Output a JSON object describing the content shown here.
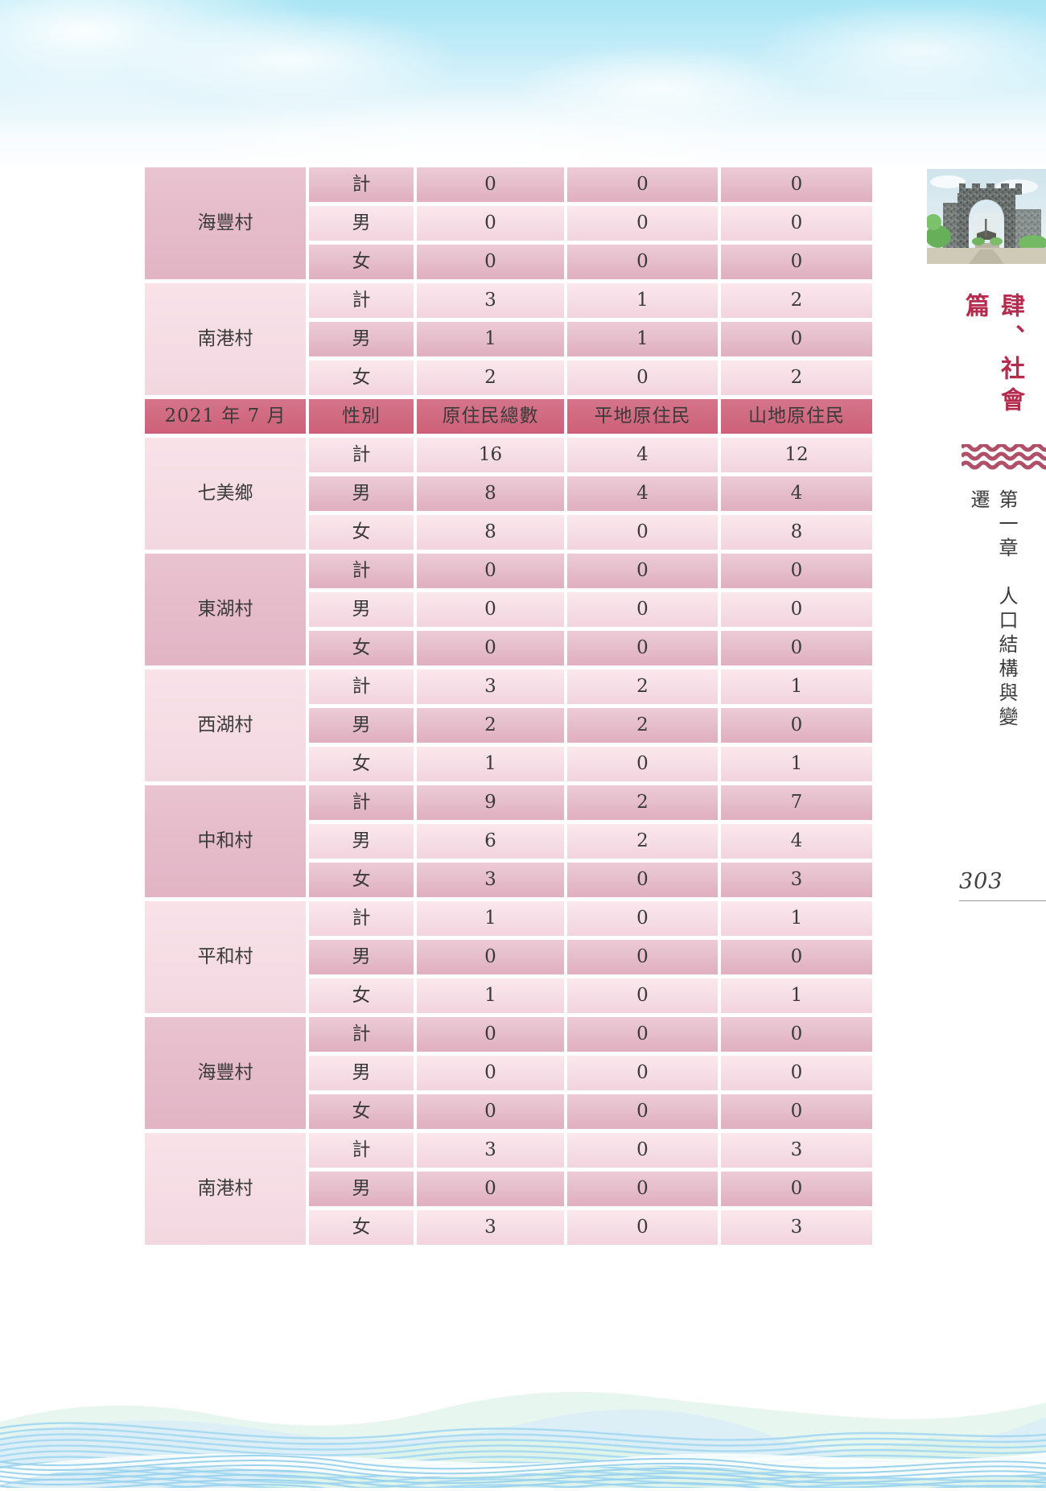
{
  "page": {
    "number": "303"
  },
  "sidebar": {
    "section_title": "肆、社會篇",
    "chapter_title": "第一章　人口結構與變遷",
    "icons": [
      "stone-arch-gate-photo",
      "triple-wave-icon"
    ]
  },
  "table": {
    "header": [
      "2021 年 7 月",
      "性別",
      "原住民總數",
      "平地原住民",
      "山地原住民"
    ],
    "pre_groups": [
      {
        "village": "海豐村",
        "rows": [
          [
            "計",
            "0",
            "0",
            "0"
          ],
          [
            "男",
            "0",
            "0",
            "0"
          ],
          [
            "女",
            "0",
            "0",
            "0"
          ]
        ]
      },
      {
        "village": "南港村",
        "rows": [
          [
            "計",
            "3",
            "1",
            "2"
          ],
          [
            "男",
            "1",
            "1",
            "0"
          ],
          [
            "女",
            "2",
            "0",
            "2"
          ]
        ]
      }
    ],
    "post_groups": [
      {
        "village": "七美鄉",
        "rows": [
          [
            "計",
            "16",
            "4",
            "12"
          ],
          [
            "男",
            "8",
            "4",
            "4"
          ],
          [
            "女",
            "8",
            "0",
            "8"
          ]
        ]
      },
      {
        "village": "東湖村",
        "rows": [
          [
            "計",
            "0",
            "0",
            "0"
          ],
          [
            "男",
            "0",
            "0",
            "0"
          ],
          [
            "女",
            "0",
            "0",
            "0"
          ]
        ]
      },
      {
        "village": "西湖村",
        "rows": [
          [
            "計",
            "3",
            "2",
            "1"
          ],
          [
            "男",
            "2",
            "2",
            "0"
          ],
          [
            "女",
            "1",
            "0",
            "1"
          ]
        ]
      },
      {
        "village": "中和村",
        "rows": [
          [
            "計",
            "9",
            "2",
            "7"
          ],
          [
            "男",
            "6",
            "2",
            "4"
          ],
          [
            "女",
            "3",
            "0",
            "3"
          ]
        ]
      },
      {
        "village": "平和村",
        "rows": [
          [
            "計",
            "1",
            "0",
            "1"
          ],
          [
            "男",
            "0",
            "0",
            "0"
          ],
          [
            "女",
            "1",
            "0",
            "1"
          ]
        ]
      },
      {
        "village": "海豐村",
        "rows": [
          [
            "計",
            "0",
            "0",
            "0"
          ],
          [
            "男",
            "0",
            "0",
            "0"
          ],
          [
            "女",
            "0",
            "0",
            "0"
          ]
        ]
      },
      {
        "village": "南港村",
        "rows": [
          [
            "計",
            "3",
            "0",
            "3"
          ],
          [
            "男",
            "0",
            "0",
            "0"
          ],
          [
            "女",
            "3",
            "0",
            "3"
          ]
        ]
      }
    ],
    "colors": {
      "header_bg": "#cc6078",
      "row_dark": "#e2b4c4",
      "row_light": "#f5dbe3",
      "accent_red": "#b52a4d"
    }
  }
}
